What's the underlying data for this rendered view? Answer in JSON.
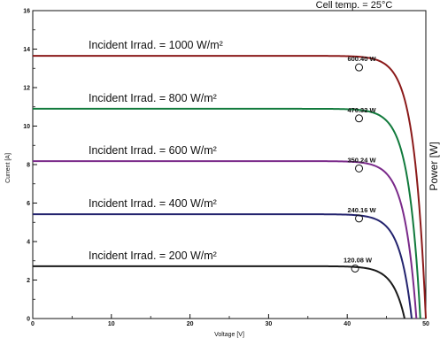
{
  "chart_data": {
    "type": "line",
    "header_note": "Cell temp. = 25°C",
    "xlabel": "Voltage [V]",
    "ylabel": "Current [A]",
    "y2label": "Power [W]",
    "xlim": [
      0,
      50
    ],
    "ylim": [
      0,
      16
    ],
    "xticks": [
      0,
      10,
      20,
      30,
      40,
      50
    ],
    "yticks": [
      0,
      2,
      4,
      6,
      8,
      10,
      12,
      14,
      16
    ],
    "grid": false,
    "legend": "none",
    "series": [
      {
        "label": "Incident Irrad. = 1000 W/m²",
        "isc": 13.65,
        "voc": 50,
        "color": "#8b1a1a",
        "mpp": {
          "v": 41.5,
          "i": 13.05,
          "label": "600.40 W"
        }
      },
      {
        "label": "Incident Irrad. = 800 W/m²",
        "isc": 10.9,
        "voc": 49.3,
        "color": "#117a3c",
        "mpp": {
          "v": 41.5,
          "i": 10.4,
          "label": "470.32 W"
        }
      },
      {
        "label": "Incident Irrad. = 600 W/m²",
        "isc": 8.18,
        "voc": 48.8,
        "color": "#7a2a8a",
        "mpp": {
          "v": 41.5,
          "i": 7.8,
          "label": "350.24 W"
        }
      },
      {
        "label": "Incident Irrad. = 400 W/m²",
        "isc": 5.42,
        "voc": 48.2,
        "color": "#23236e",
        "mpp": {
          "v": 41.5,
          "i": 5.2,
          "label": "240.16 W"
        }
      },
      {
        "label": "Incident Irrad. = 200 W/m²",
        "isc": 2.72,
        "voc": 47.3,
        "color": "#1a1a1a",
        "mpp": {
          "v": 41.0,
          "i": 2.6,
          "label": "120.08 W"
        }
      }
    ]
  }
}
